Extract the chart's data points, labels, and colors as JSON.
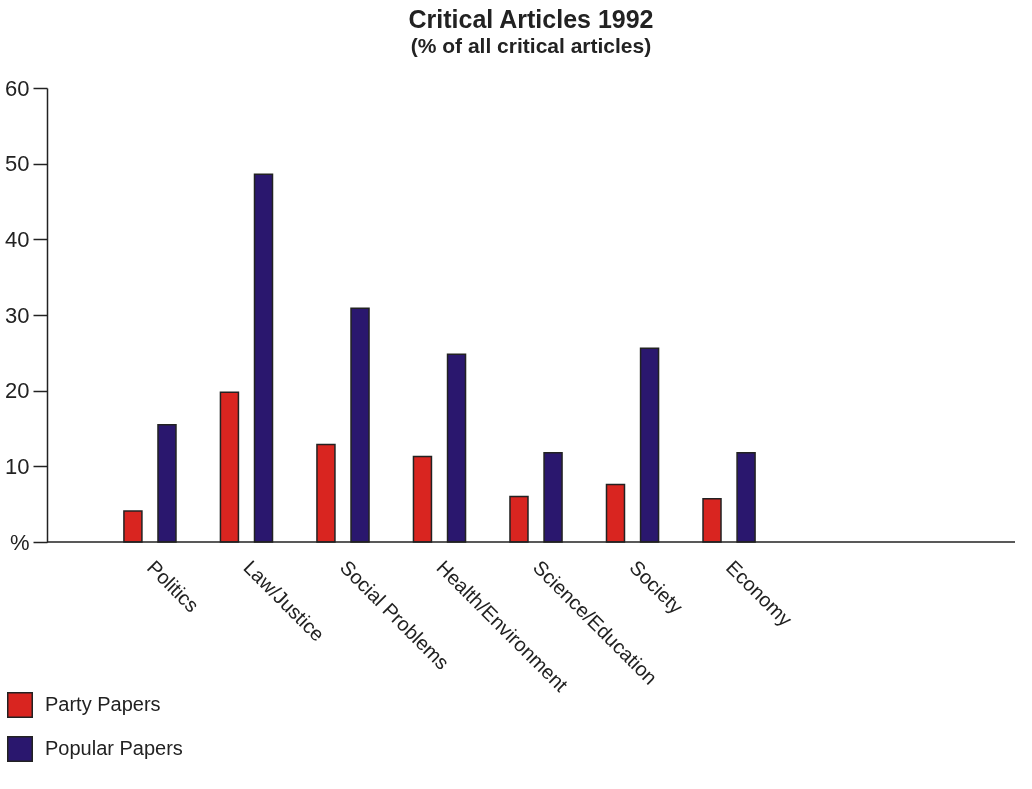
{
  "chart_data": {
    "type": "bar",
    "title": "Critical Articles 1992",
    "subtitle": "(% of all critical articles)",
    "categories": [
      "Politics",
      "Law/Justice",
      "Social Problems",
      "Health/Environment",
      "Science/Education",
      "Society",
      "Economy"
    ],
    "series": [
      {
        "name": "Party Papers",
        "color": "#d92520",
        "values": [
          4.1,
          19.8,
          12.9,
          11.3,
          6.0,
          7.6,
          5.7
        ]
      },
      {
        "name": "Popular Papers",
        "color": "#2a176e",
        "values": [
          15.5,
          48.6,
          30.9,
          24.8,
          11.8,
          25.6,
          11.8
        ]
      }
    ],
    "ylim": [
      0,
      60
    ],
    "yticks": [
      {
        "value": 0,
        "label": "%"
      },
      10,
      20,
      30,
      40,
      50,
      60
    ],
    "grid": false,
    "legend": "bottom"
  }
}
